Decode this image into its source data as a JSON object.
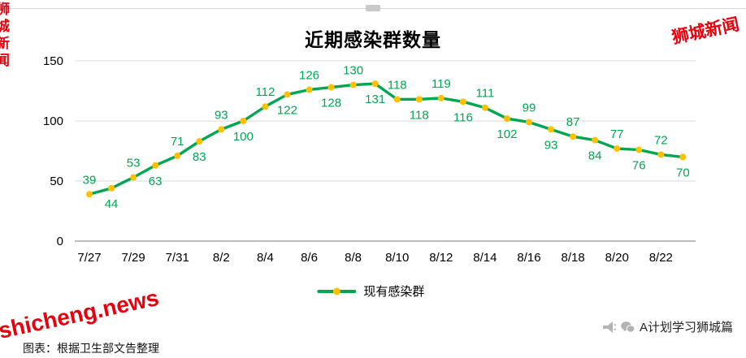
{
  "page": {
    "title": "近期感染群数量",
    "caption_bottom": "图表：根据卫生部文告整理",
    "source_credit": "A计划学习狮城篇"
  },
  "watermarks": {
    "top_right": "狮城新闻",
    "left_edge": "狮城新闻",
    "bottom_left": "shicheng.news"
  },
  "legend": {
    "label": "现有感染群"
  },
  "colors": {
    "line": "#00a651",
    "marker": "#ffc000",
    "point_label": "#00a651",
    "watermark_red": "#e8000d",
    "grid": "#d9d9d9",
    "axis": "#a6a6a6",
    "icon_gray": "#b3b3b3"
  },
  "chart_data": {
    "type": "line",
    "title": "近期感染群数量",
    "x": [
      "7/27",
      "7/28",
      "7/29",
      "7/30",
      "7/31",
      "8/1",
      "8/2",
      "8/3",
      "8/4",
      "8/5",
      "8/6",
      "8/7",
      "8/8",
      "8/9",
      "8/10",
      "8/11",
      "8/12",
      "8/13",
      "8/14",
      "8/15",
      "8/16",
      "8/17",
      "8/18",
      "8/19",
      "8/20",
      "8/21",
      "8/22",
      "8/23"
    ],
    "series": [
      {
        "name": "现有感染群",
        "values": [
          39,
          44,
          53,
          63,
          71,
          83,
          93,
          100,
          112,
          122,
          126,
          128,
          130,
          131,
          118,
          118,
          119,
          116,
          111,
          102,
          99,
          93,
          87,
          84,
          77,
          76,
          72,
          70
        ]
      }
    ],
    "ylim": [
      0,
      150
    ],
    "yticks": [
      0,
      50,
      100,
      150
    ],
    "xtick_labels": [
      "7/27",
      "7/29",
      "7/31",
      "8/2",
      "8/4",
      "8/6",
      "8/8",
      "8/10",
      "8/12",
      "8/14",
      "8/16",
      "8/18",
      "8/20",
      "8/22"
    ],
    "grid": true,
    "legend_position": "bottom",
    "point_labels": "alternating above/below"
  }
}
